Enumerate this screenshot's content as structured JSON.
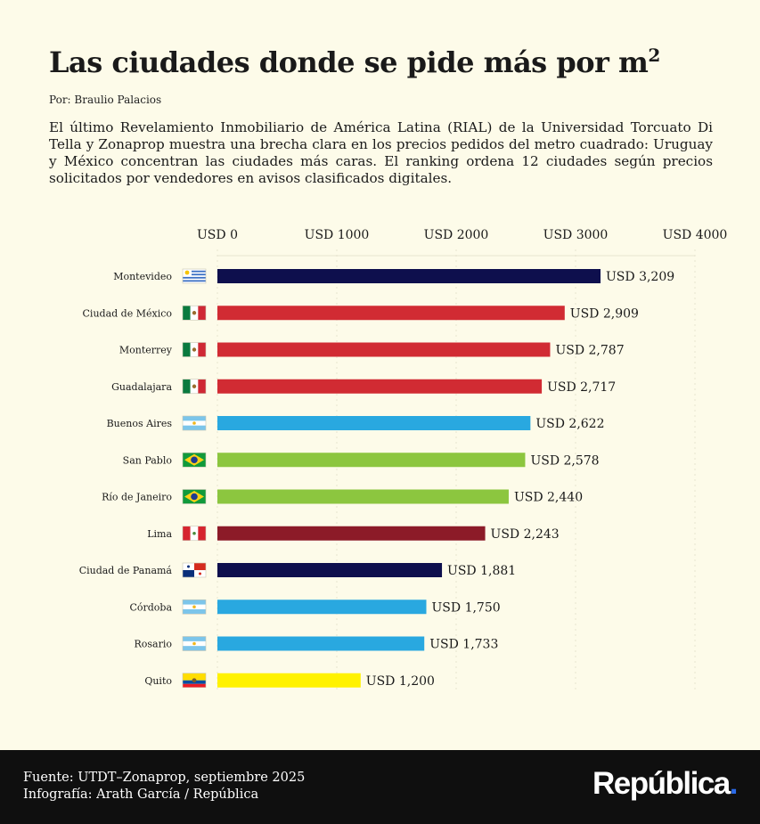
{
  "header": {
    "title": "Las ciudades donde se pide más por m",
    "title_sup": "2",
    "byline": "Por: Braulio Palacios",
    "intro": "El último Revelamiento Inmobiliario de América Latina (RIAL) de la Universidad Torcuato Di Tella y Zonaprop muestra una brecha clara en los precios pedidos del metro cuadrado: Uruguay y México concentran las ciudades más caras. El ranking ordena 12 ciudades según precios solicitados por vendedores en avisos clasificados digitales."
  },
  "chart_data": {
    "type": "bar",
    "orientation": "horizontal",
    "title": "Las ciudades donde se pide más por m²",
    "xlabel": "",
    "ylabel": "",
    "xlim": [
      0,
      4000
    ],
    "ticks": [
      0,
      1000,
      2000,
      3000,
      4000
    ],
    "tick_labels": [
      "USD 0",
      "USD 1000",
      "USD 2000",
      "USD 3000",
      "USD 4000"
    ],
    "grid": true,
    "categories": [
      "Montevideo",
      "Ciudad de México",
      "Monterrey",
      "Guadalajara",
      "Buenos Aires",
      "San Pablo",
      "Río de Janeiro",
      "Lima",
      "Ciudad de Panamá",
      "Córdoba",
      "Rosario",
      "Quito"
    ],
    "values": [
      3209,
      2909,
      2787,
      2717,
      2622,
      2578,
      2440,
      2243,
      1881,
      1750,
      1733,
      1200
    ],
    "value_labels": [
      "USD 3,209",
      "USD 2,909",
      "USD 2,787",
      "USD 2,717",
      "USD 2,622",
      "USD 2,578",
      "USD 2,440",
      "USD 2,243",
      "USD 1,881",
      "USD 1,750",
      "USD 1,733",
      "USD 1,200"
    ],
    "flags": [
      "uruguay-flag-icon",
      "mexico-flag-icon",
      "mexico-flag-icon",
      "mexico-flag-icon",
      "argentina-flag-icon",
      "brazil-flag-icon",
      "brazil-flag-icon",
      "peru-flag-icon",
      "panama-flag-icon",
      "argentina-flag-icon",
      "argentina-flag-icon",
      "ecuador-flag-icon"
    ],
    "colors": [
      "#0e0f4d",
      "#d12b33",
      "#d12b33",
      "#d12b33",
      "#29a8e0",
      "#8cc63f",
      "#8cc63f",
      "#8c1b28",
      "#0e0f4d",
      "#29a8e0",
      "#29a8e0",
      "#fff200"
    ]
  },
  "footer": {
    "source": "Fuente: UTDT–Zonaprop, septiembre 2025",
    "credit": "Infografía: Arath García / República",
    "logo": "República",
    "logo_dot": "."
  }
}
